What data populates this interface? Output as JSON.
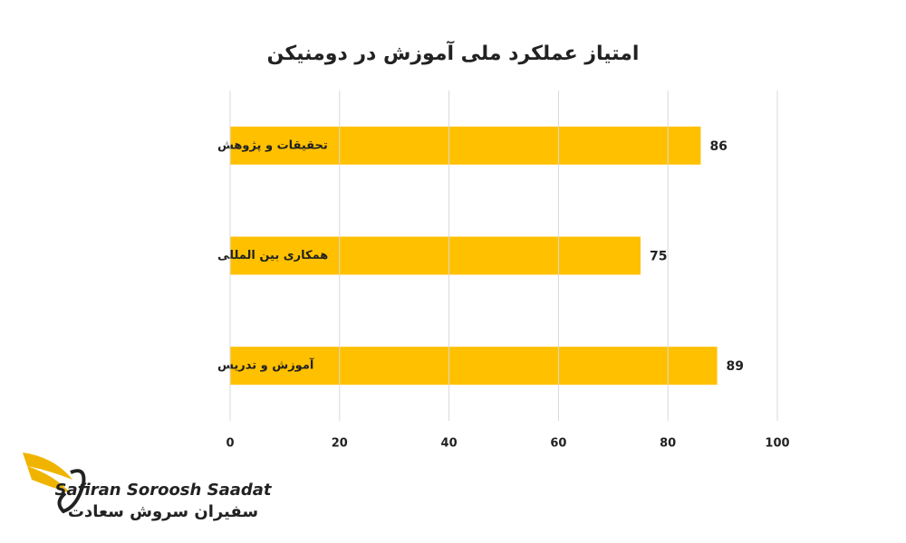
{
  "chart_data": {
    "type": "hbar",
    "title": "امتیاز عملکرد ملی آموزش در دومنیکن",
    "categories": [
      "تحقیقات و پژوهش",
      "همکاری بین المللی",
      "آموزش و تدریس"
    ],
    "values": [
      86,
      75,
      89
    ],
    "color": "#ffc000",
    "xlim": [
      0,
      100
    ],
    "xticks": [
      0,
      20,
      40,
      60,
      80,
      100
    ],
    "grid": true,
    "annotations": [
      "Safiran Soroosh Saadat",
      "سفیران سروش سعادت"
    ]
  }
}
